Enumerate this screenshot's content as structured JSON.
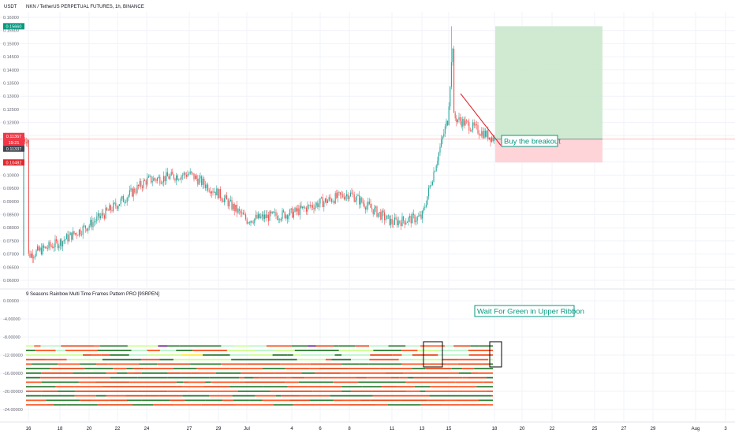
{
  "header": {
    "currency": "USDT",
    "symbol_title": "NKN / TetherUS PERPETUAL FUTURES, 1h, BINANCE"
  },
  "indicator": {
    "title": "9 Seasons Rainbow Multi Time Frames Pattern PRO [9SRPEN]"
  },
  "annotations": {
    "buy_label": "Buy the breakout",
    "wait_label": "Wait For Green in Upper Ribbon"
  },
  "price_badges": [
    {
      "label": "0.15660",
      "color": "#089981"
    },
    {
      "label": "0.11367",
      "color": "#f23645"
    },
    {
      "label": "19:21",
      "color": "#f23645"
    },
    {
      "label": "0.11337",
      "color": "#434651"
    },
    {
      "label": "0.10482",
      "color": "#e0292f"
    }
  ],
  "colors": {
    "up": "#26a69a",
    "down": "#ef5350",
    "grid": "#f0f3fa",
    "axis_text": "#131722",
    "target_zone": "#c8e6c9",
    "stop_zone": "#ffcdd2",
    "label_text": "#089981",
    "trendline": "#e0292f",
    "ribbon": [
      "#ff5722",
      "#f4511e",
      "#e64a19",
      "#2e7d32",
      "#b9f6ca",
      "#ccff90",
      "#ffeb3b",
      "#6a1b9a"
    ]
  },
  "chart_data": [
    {
      "type": "candlestick",
      "title": "NKN / TetherUS PERPETUAL FUTURES, 1h, BINANCE",
      "x_ticks": [
        "16",
        "18",
        "20",
        "22",
        "24",
        "27",
        "29",
        "Jul",
        "4",
        "6",
        "8",
        "11",
        "13",
        "15",
        "18",
        "20",
        "22",
        "25",
        "27",
        "29",
        "Aug",
        "3"
      ],
      "y_ticks": [
        "0.16000",
        "0.15500",
        "0.15000",
        "0.14500",
        "0.14000",
        "0.13500",
        "0.13000",
        "0.12500",
        "0.12000",
        "0.11500",
        "0.11000",
        "0.10500",
        "0.10000",
        "0.09500",
        "0.09000",
        "0.08500",
        "0.08000",
        "0.07500",
        "0.07000",
        "0.06500",
        "0.06000"
      ],
      "ylim": [
        0.058,
        0.162
      ],
      "x_dates": [
        "Jun 16",
        "Jun 18",
        "Jun 20",
        "Jun 22",
        "Jun 24",
        "Jun 27",
        "Jun 29",
        "Jul 1",
        "Jul 4",
        "Jul 6",
        "Jul 8",
        "Jul 11",
        "Jul 13",
        "Jul 15",
        "Jul 18"
      ],
      "close_trend": [
        0.0695,
        0.0745,
        0.081,
        0.089,
        0.098,
        0.1005,
        0.093,
        0.083,
        0.0855,
        0.0895,
        0.093,
        0.082,
        0.084,
        0.123,
        0.1137
      ],
      "spike_high": 0.1566,
      "last_price": 0.11367,
      "current_price": 0.11337,
      "stop_level": 0.10482,
      "take_profit_level": 0.1566,
      "trendline": {
        "from_date": "Jul 15",
        "from_price": 0.131,
        "to_date": "Jul 18",
        "to_price": 0.1137
      }
    },
    {
      "type": "heatmap",
      "title": "9 Seasons Rainbow Multi Time Frames Pattern PRO [9SRPEN]",
      "y_ticks": [
        "0.00000",
        "-4.00000",
        "-8.00000",
        "-12.00000",
        "-16.00000",
        "-20.00000",
        "-24.00000"
      ],
      "ylim": [
        -26,
        0
      ],
      "ribbon_levels": [
        -10,
        -11,
        -12,
        -13,
        -14,
        -15,
        -16,
        -17,
        -18,
        -19,
        -20,
        -21,
        -22,
        -23
      ]
    }
  ]
}
